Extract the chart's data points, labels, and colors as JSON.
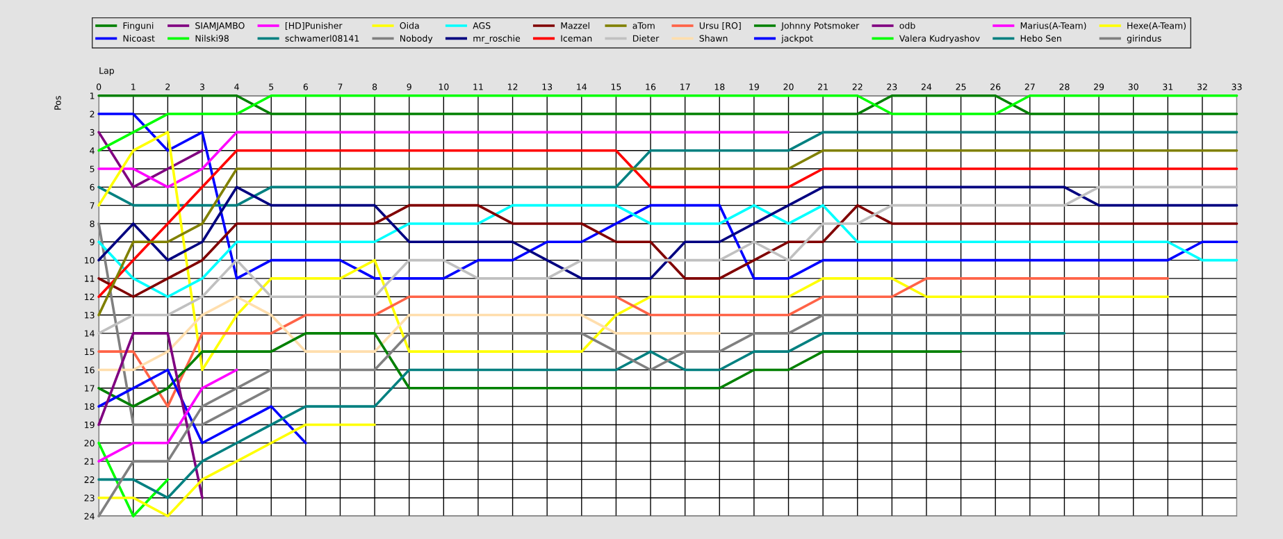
{
  "chart_data": {
    "type": "line",
    "xlabel": "Lap",
    "ylabel": "Pos",
    "x": [
      0,
      1,
      2,
      3,
      4,
      5,
      6,
      7,
      8,
      9,
      10,
      11,
      12,
      13,
      14,
      15,
      16,
      17,
      18,
      19,
      20,
      21,
      22,
      23,
      24,
      25,
      26,
      27,
      28,
      29,
      30,
      31,
      32,
      33
    ],
    "xlim": [
      0,
      33
    ],
    "xticks": [
      0,
      1,
      2,
      3,
      4,
      5,
      6,
      7,
      8,
      9,
      10,
      11,
      12,
      13,
      14,
      15,
      16,
      17,
      18,
      19,
      20,
      21,
      22,
      23,
      24,
      25,
      26,
      27,
      28,
      29,
      30,
      31,
      32,
      33
    ],
    "ylim": [
      24,
      1
    ],
    "yticks": [
      1,
      2,
      3,
      4,
      5,
      6,
      7,
      8,
      9,
      10,
      11,
      12,
      13,
      14,
      15,
      16,
      17,
      18,
      19,
      20,
      21,
      22,
      23,
      24
    ],
    "grid": true,
    "legend": "top",
    "marker": "none",
    "line_style": "solid",
    "series": [
      {
        "name": "Finguni",
        "color": "#008000",
        "values": [
          1,
          1,
          1,
          1,
          1,
          2,
          2,
          2,
          2,
          2,
          2,
          2,
          2,
          2,
          2,
          2,
          2,
          2,
          2,
          2,
          2,
          2,
          2,
          1,
          1,
          1,
          1,
          2,
          2,
          2,
          2,
          2,
          2,
          2
        ]
      },
      {
        "name": "Nicoast",
        "color": "#0000ff",
        "values": [
          2,
          2,
          4,
          3,
          11,
          10,
          10,
          10,
          11,
          11,
          11,
          10,
          10,
          9,
          9,
          8,
          7,
          7,
          7,
          11,
          11,
          10,
          10,
          10,
          10,
          10,
          10,
          10,
          10,
          10,
          10,
          10,
          9,
          9
        ]
      },
      {
        "name": "SIAMJAMBO",
        "color": "#800080",
        "values": [
          3,
          6,
          5,
          4,
          null,
          null,
          null,
          null,
          null,
          null,
          null,
          null,
          null,
          null,
          null,
          null,
          null,
          null,
          null,
          null,
          null,
          null,
          null,
          null,
          null,
          null,
          null,
          null,
          null,
          null,
          null,
          null,
          null,
          null
        ]
      },
      {
        "name": "Nilski98",
        "color": "#00ff00",
        "values": [
          4,
          3,
          2,
          2,
          2,
          1,
          1,
          1,
          1,
          1,
          1,
          1,
          1,
          1,
          1,
          1,
          1,
          1,
          1,
          1,
          1,
          1,
          1,
          2,
          2,
          2,
          2,
          1,
          1,
          1,
          1,
          1,
          1,
          1
        ]
      },
      {
        "name": "[HD]Punisher",
        "color": "#ff00ff",
        "values": [
          5,
          5,
          6,
          5,
          3,
          3,
          3,
          3,
          3,
          3,
          3,
          3,
          3,
          3,
          3,
          3,
          3,
          3,
          3,
          3,
          3,
          null,
          null,
          null,
          null,
          null,
          null,
          null,
          null,
          null,
          null,
          null,
          null,
          null
        ]
      },
      {
        "name": "schwamerl08141",
        "color": "#008080",
        "values": [
          6,
          7,
          7,
          7,
          7,
          6,
          6,
          6,
          6,
          6,
          6,
          6,
          6,
          6,
          6,
          6,
          4,
          4,
          4,
          4,
          4,
          3,
          3,
          3,
          3,
          3,
          3,
          3,
          3,
          3,
          3,
          3,
          3,
          3
        ]
      },
      {
        "name": "Oida",
        "color": "#ffff00",
        "values": [
          7,
          4,
          3,
          16,
          13,
          11,
          11,
          11,
          10,
          15,
          15,
          15,
          15,
          15,
          15,
          13,
          12,
          12,
          12,
          12,
          12,
          11,
          11,
          11,
          12,
          12,
          12,
          12,
          12,
          12,
          12,
          12,
          null,
          null
        ]
      },
      {
        "name": "Nobody",
        "color": "#808080",
        "values": [
          8,
          19,
          19,
          19,
          18,
          17,
          17,
          17,
          17,
          null,
          null,
          null,
          null,
          null,
          null,
          null,
          null,
          null,
          null,
          null,
          null,
          null,
          null,
          null,
          null,
          null,
          null,
          null,
          null,
          null,
          null,
          null,
          null,
          null
        ]
      },
      {
        "name": "AGS",
        "color": "#00ffff",
        "values": [
          9,
          11,
          12,
          11,
          9,
          9,
          9,
          9,
          9,
          8,
          8,
          8,
          7,
          7,
          7,
          7,
          8,
          8,
          8,
          7,
          8,
          7,
          9,
          9,
          9,
          9,
          9,
          9,
          9,
          9,
          9,
          9,
          10,
          10
        ]
      },
      {
        "name": "mr_roschie",
        "color": "#000080",
        "values": [
          10,
          8,
          10,
          9,
          6,
          7,
          7,
          7,
          7,
          9,
          9,
          9,
          9,
          10,
          11,
          11,
          11,
          9,
          9,
          8,
          7,
          6,
          6,
          6,
          6,
          6,
          6,
          6,
          6,
          7,
          7,
          7,
          7,
          7
        ]
      },
      {
        "name": "Mazzel",
        "color": "#800000",
        "values": [
          11,
          12,
          11,
          10,
          8,
          8,
          8,
          8,
          8,
          7,
          7,
          7,
          8,
          8,
          8,
          9,
          9,
          11,
          11,
          10,
          9,
          9,
          7,
          8,
          8,
          8,
          8,
          8,
          8,
          8,
          8,
          8,
          8,
          8
        ]
      },
      {
        "name": "Iceman",
        "color": "#ff0000",
        "values": [
          12,
          10,
          8,
          6,
          4,
          4,
          4,
          4,
          4,
          4,
          4,
          4,
          4,
          4,
          4,
          4,
          6,
          6,
          6,
          6,
          6,
          5,
          5,
          5,
          5,
          5,
          5,
          5,
          5,
          5,
          5,
          5,
          5,
          5
        ]
      },
      {
        "name": "aTom",
        "color": "#808000",
        "values": [
          13,
          9,
          9,
          8,
          5,
          5,
          5,
          5,
          5,
          5,
          5,
          5,
          5,
          5,
          5,
          5,
          5,
          5,
          5,
          5,
          5,
          4,
          4,
          4,
          4,
          4,
          4,
          4,
          4,
          4,
          4,
          4,
          4,
          4
        ]
      },
      {
        "name": "Dieter",
        "color": "#c0c0c0",
        "values": [
          14,
          13,
          13,
          12,
          10,
          12,
          12,
          12,
          12,
          10,
          10,
          11,
          11,
          11,
          10,
          10,
          10,
          10,
          10,
          9,
          10,
          8,
          8,
          7,
          7,
          7,
          7,
          7,
          7,
          6,
          6,
          6,
          6,
          6
        ]
      },
      {
        "name": "Ursu [RO]",
        "color": "#ff6347",
        "values": [
          15,
          15,
          18,
          14,
          14,
          14,
          13,
          13,
          13,
          12,
          12,
          12,
          12,
          12,
          12,
          12,
          13,
          13,
          13,
          13,
          13,
          12,
          12,
          12,
          11,
          11,
          11,
          11,
          11,
          11,
          11,
          11,
          null,
          null
        ]
      },
      {
        "name": "Shawn",
        "color": "#ffdead",
        "values": [
          16,
          16,
          15,
          13,
          12,
          13,
          15,
          15,
          15,
          13,
          13,
          13,
          13,
          13,
          13,
          14,
          14,
          14,
          14,
          null,
          null,
          null,
          null,
          null,
          null,
          null,
          null,
          null,
          null,
          null,
          null,
          null,
          null,
          null
        ]
      },
      {
        "name": "Johnny Potsmoker",
        "color": "#008000",
        "values": [
          17,
          18,
          17,
          15,
          15,
          15,
          14,
          14,
          14,
          17,
          17,
          17,
          17,
          17,
          17,
          17,
          17,
          17,
          17,
          16,
          16,
          15,
          15,
          15,
          15,
          15,
          null,
          null,
          null,
          null,
          null,
          null,
          null,
          null
        ]
      },
      {
        "name": "jackpot",
        "color": "#0000ff",
        "values": [
          18,
          17,
          16,
          20,
          19,
          18,
          20,
          null,
          null,
          null,
          null,
          null,
          null,
          null,
          null,
          null,
          null,
          null,
          null,
          null,
          null,
          null,
          null,
          null,
          null,
          null,
          null,
          null,
          null,
          null,
          null,
          null,
          null,
          null
        ]
      },
      {
        "name": "odb",
        "color": "#800080",
        "values": [
          19,
          14,
          14,
          23,
          null,
          null,
          null,
          null,
          null,
          null,
          null,
          null,
          null,
          null,
          null,
          null,
          null,
          null,
          null,
          null,
          null,
          null,
          null,
          null,
          null,
          null,
          null,
          null,
          null,
          null,
          null,
          null,
          null,
          null
        ]
      },
      {
        "name": "Valera Kudryashov",
        "color": "#00ff00",
        "values": [
          20,
          24,
          22,
          null,
          null,
          null,
          null,
          null,
          null,
          null,
          null,
          null,
          null,
          null,
          null,
          null,
          null,
          null,
          null,
          null,
          null,
          null,
          null,
          null,
          null,
          null,
          null,
          null,
          null,
          null,
          null,
          null,
          null,
          null
        ]
      },
      {
        "name": "Marius(A-Team)",
        "color": "#ff00ff",
        "values": [
          21,
          20,
          20,
          17,
          16,
          null,
          null,
          null,
          null,
          null,
          null,
          null,
          null,
          null,
          null,
          null,
          null,
          null,
          null,
          null,
          null,
          null,
          null,
          null,
          null,
          null,
          null,
          null,
          null,
          null,
          null,
          null,
          null,
          null
        ]
      },
      {
        "name": "Hebo Sen",
        "color": "#008080",
        "values": [
          22,
          22,
          23,
          21,
          20,
          19,
          18,
          18,
          18,
          16,
          16,
          16,
          16,
          16,
          16,
          16,
          15,
          16,
          16,
          15,
          15,
          14,
          14,
          14,
          14,
          14,
          14,
          14,
          14,
          null,
          null,
          null,
          null,
          null
        ]
      },
      {
        "name": "Hexe(A-Team)",
        "color": "#ffff00",
        "values": [
          23,
          23,
          24,
          22,
          21,
          20,
          19,
          19,
          19,
          null,
          null,
          null,
          null,
          null,
          null,
          null,
          null,
          null,
          null,
          null,
          null,
          null,
          null,
          null,
          null,
          null,
          null,
          null,
          null,
          null,
          null,
          null,
          null,
          null
        ]
      },
      {
        "name": "girindus",
        "color": "#808080",
        "values": [
          24,
          21,
          21,
          18,
          17,
          16,
          16,
          16,
          16,
          14,
          14,
          14,
          14,
          14,
          14,
          15,
          16,
          15,
          15,
          14,
          14,
          13,
          13,
          13,
          13,
          13,
          13,
          13,
          13,
          13,
          null,
          null,
          null,
          null
        ]
      }
    ]
  }
}
